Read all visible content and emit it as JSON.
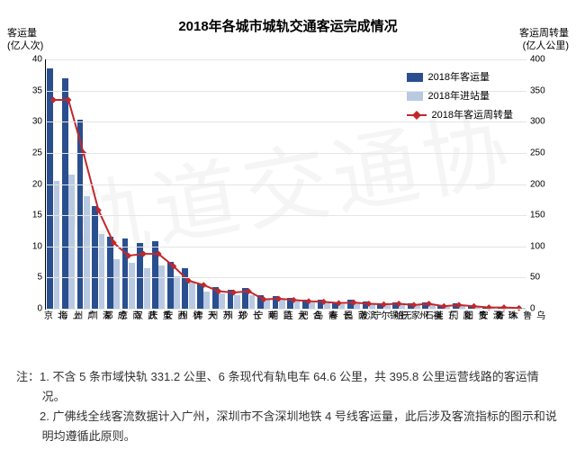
{
  "chart": {
    "type": "bar+line",
    "title": "2018年各城市城轨交通客运完成情况",
    "background_color": "#ffffff",
    "grid_color": "#e5e5e5",
    "left_axis": {
      "title_line1": "客运量",
      "title_line2": "(亿人次)",
      "min": 0,
      "max": 40,
      "step": 5,
      "fontsize": 11
    },
    "right_axis": {
      "title_line1": "客运周转量",
      "title_line2": "(亿人公里)",
      "min": 0,
      "max": 400,
      "step": 50,
      "fontsize": 11
    },
    "legend": {
      "items": [
        {
          "label": "2018年客运量",
          "type": "bar",
          "color": "#2a4f8f"
        },
        {
          "label": "2018年进站量",
          "type": "bar",
          "color": "#b9c9e2"
        },
        {
          "label": "2018年客运周转量",
          "type": "line",
          "color": "#c3272b",
          "marker": "triangle"
        }
      ]
    },
    "bar_colors": {
      "ridership": "#2a4f8f",
      "entry": "#b9c9e2"
    },
    "line_color": "#c3272b",
    "line_width": 2,
    "marker_size": 7,
    "categories": [
      "北京",
      "上海",
      "广州",
      "深圳",
      "成都",
      "南京",
      "武汉",
      "重庆",
      "西安",
      "杭州",
      "天津",
      "苏州",
      "郑州",
      "长沙",
      "南宁",
      "昆明",
      "大连",
      "合肥",
      "青岛",
      "长春",
      "南昌",
      "宁波",
      "哈尔滨",
      "无锡",
      "石家庄",
      "福州",
      "东莞",
      "厦门",
      "贵阳",
      "淮安",
      "珠海",
      "乌鲁木齐"
    ],
    "series": {
      "ridership": [
        38.5,
        37.0,
        30.3,
        16.5,
        11.6,
        11.2,
        10.5,
        10.8,
        7.5,
        6.5,
        4.1,
        3.5,
        3.0,
        3.3,
        2.2,
        2.0,
        1.8,
        1.4,
        1.4,
        1.0,
        1.4,
        1.2,
        0.9,
        1.0,
        0.8,
        1.0,
        0.4,
        0.8,
        0.5,
        0.2,
        0.2,
        0.1
      ],
      "entry": [
        20.5,
        21.5,
        18.0,
        12.0,
        8.0,
        7.3,
        6.5,
        7.0,
        5.2,
        4.2,
        2.8,
        2.4,
        2.2,
        2.1,
        1.5,
        1.4,
        1.3,
        1.0,
        1.0,
        0.7,
        1.0,
        0.8,
        0.6,
        0.7,
        0.6,
        0.7,
        0.3,
        0.6,
        0.4,
        0.1,
        0.1,
        0.1
      ],
      "turnover": [
        335,
        335,
        250,
        158,
        106,
        85,
        88,
        88,
        68,
        45,
        38,
        28,
        26,
        28,
        15,
        16,
        14,
        12,
        11,
        9,
        10,
        8,
        7,
        8,
        6,
        8,
        4,
        6,
        4,
        2,
        2,
        1
      ]
    },
    "bar_group_width_ratio": 0.85
  },
  "notes": {
    "prefix": "注：",
    "lines": [
      "1. 不含 5 条市域快轨 331.2 公里、6 条现代有轨电车 64.6 公里，共 395.8 公里运营线路的客运情况。",
      "2. 广佛线全线客流数据计入广州，深圳市不含深圳地铁 4 号线客运量，此后涉及客流指标的图示和说明均遵循此原则。"
    ]
  },
  "watermark_text": "轨道交通协"
}
